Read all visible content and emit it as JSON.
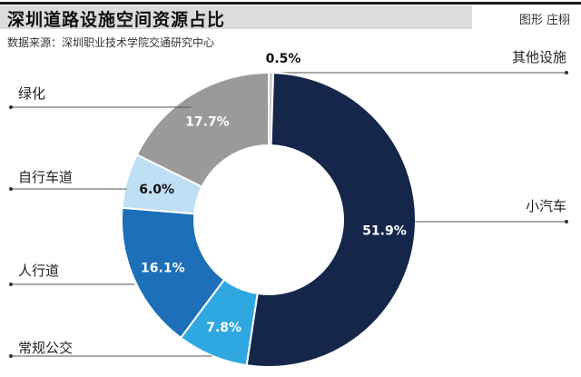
{
  "header": {
    "title": "深圳道路设施空间资源占比",
    "credit": "图形 庄栩",
    "source": "数据来源：深圳职业技术学院交通研究中心"
  },
  "chart_data": {
    "type": "pie",
    "donut": true,
    "title": "深圳道路设施空间资源占比",
    "slices": [
      {
        "label": "其他设施",
        "value": 0.5,
        "display": "0.5%",
        "color": "#cccccc"
      },
      {
        "label": "小汽车",
        "value": 51.9,
        "display": "51.9%",
        "color": "#14264a"
      },
      {
        "label": "常规公交",
        "value": 7.8,
        "display": "7.8%",
        "color": "#2fa7e0"
      },
      {
        "label": "人行道",
        "value": 16.1,
        "display": "16.1%",
        "color": "#1c6fb8"
      },
      {
        "label": "自行车道",
        "value": 6.0,
        "display": "6.0%",
        "color": "#bfe0f4"
      },
      {
        "label": "绿化",
        "value": 17.7,
        "display": "17.7%",
        "color": "#9a9a9a"
      }
    ]
  }
}
